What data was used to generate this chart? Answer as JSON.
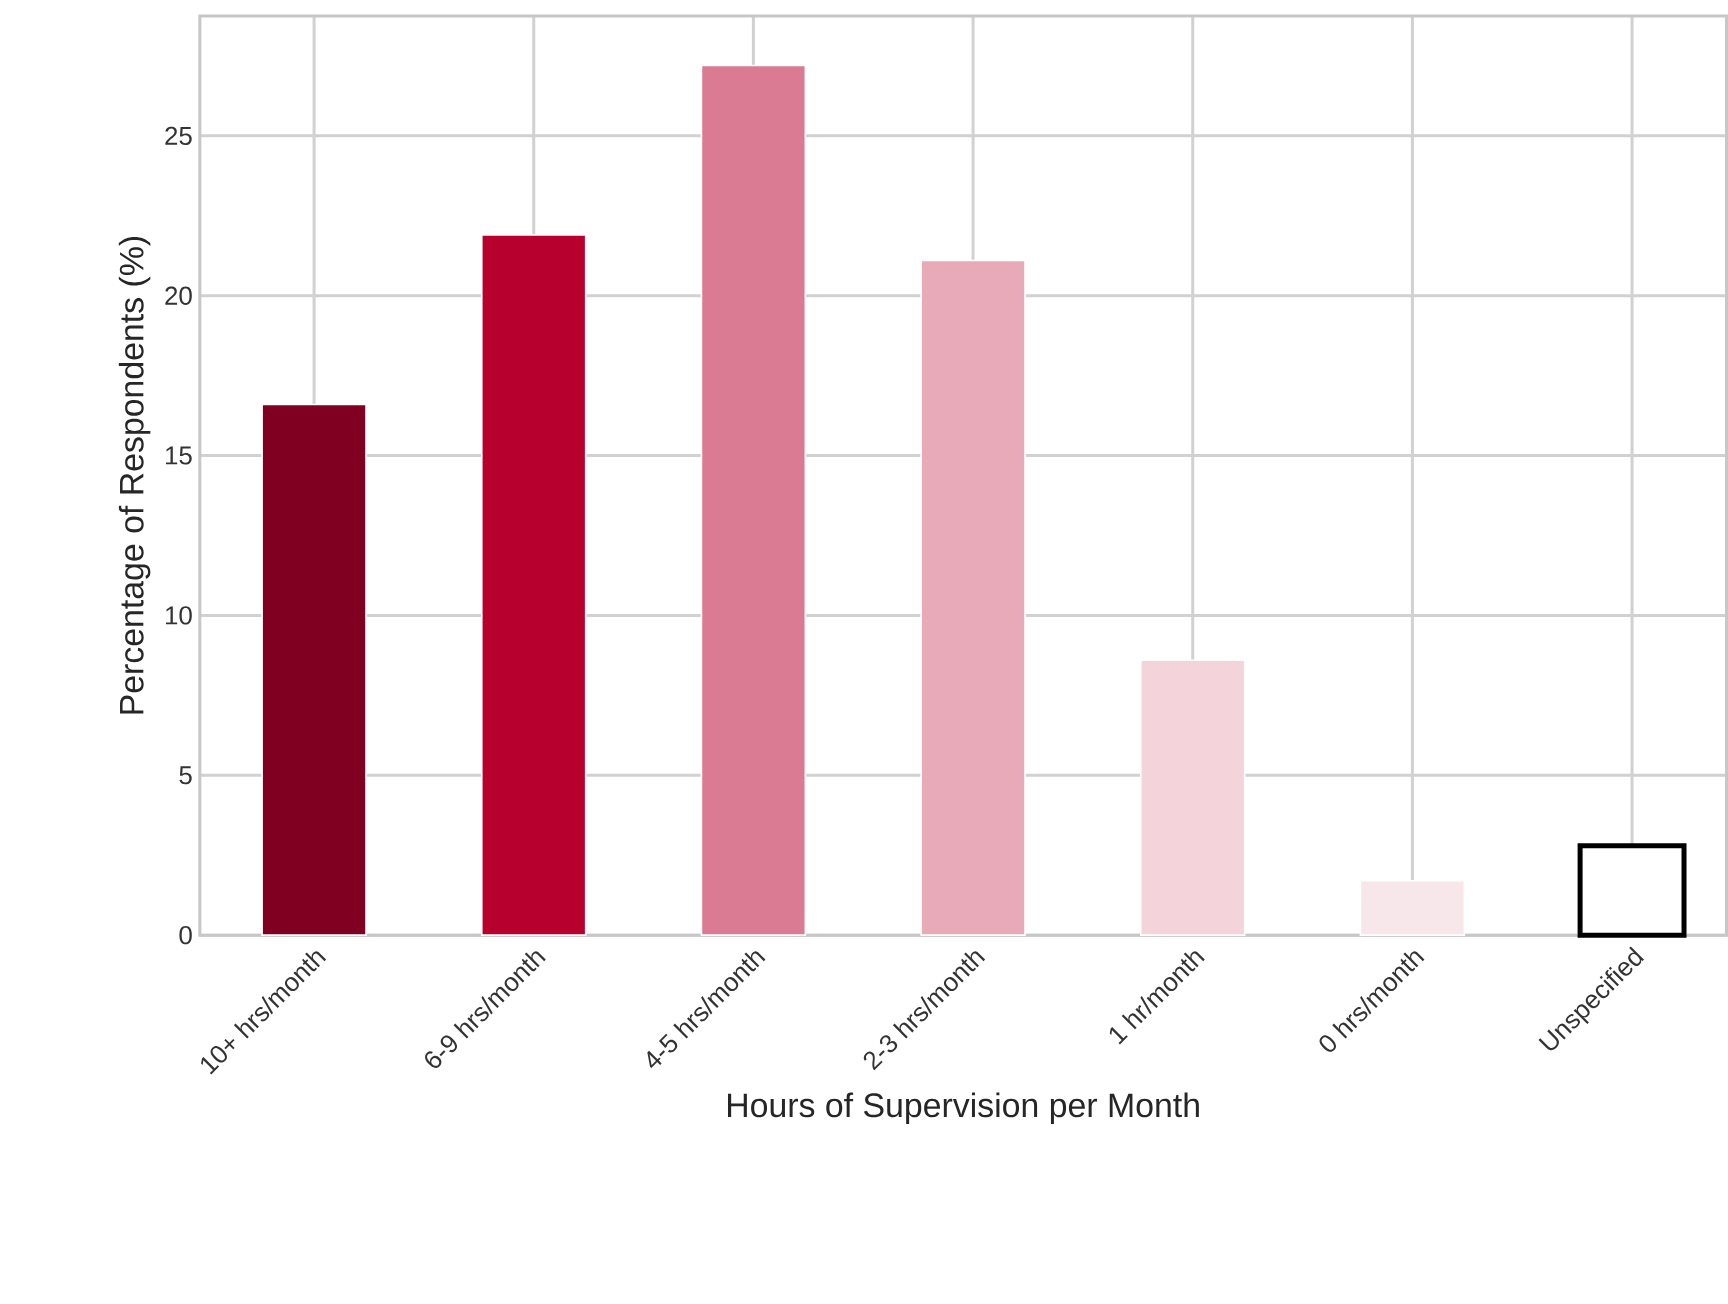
{
  "chart_data": {
    "type": "bar",
    "xlabel": "Hours of Supervision per Month",
    "ylabel": "Percentage of Respondents (%)",
    "categories": [
      "10+ hrs/month",
      "6-9 hrs/month",
      "4-5 hrs/month",
      "2-3 hrs/month",
      "1 hr/month",
      "0 hrs/month",
      "Unspecified"
    ],
    "values": [
      16.6,
      21.9,
      27.2,
      21.1,
      8.6,
      1.7,
      2.8
    ],
    "colors": [
      "#7f0020",
      "#b8002e",
      "#db7a93",
      "#e8a9b8",
      "#f5d3db",
      "#f7e6ea",
      "#ffffff"
    ],
    "ylim": [
      0,
      28.75
    ],
    "yticks": [
      0,
      5,
      10,
      15,
      20,
      25
    ],
    "grid": true
  }
}
